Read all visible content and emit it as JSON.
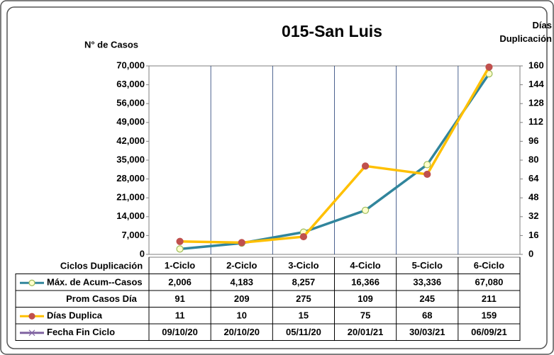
{
  "chart_data": {
    "type": "line",
    "title": "015-San Luis",
    "y_label": "N° de Casos",
    "y2_label": "Días Duplicación",
    "table_label": "Ciclos Duplicación",
    "categories": [
      "1-Ciclo",
      "2-Ciclo",
      "3-Ciclo",
      "4-Ciclo",
      "5-Ciclo",
      "6-Ciclo"
    ],
    "ylim": [
      0,
      70000
    ],
    "yticks": [
      0,
      {
        "value": 7000,
        "label": "7,000"
      },
      {
        "value": 14000,
        "label": "14,000"
      },
      {
        "value": 21000,
        "label": "21,000"
      },
      {
        "value": 28000,
        "label": "28,000"
      },
      {
        "value": 35000,
        "label": "35,000"
      },
      {
        "value": 42000,
        "label": "42,000"
      },
      {
        "value": 49000,
        "label": "49,000"
      },
      {
        "value": 56000,
        "label": "56,000"
      },
      {
        "value": 63000,
        "label": "63,000"
      },
      {
        "value": 70000,
        "label": "70,000"
      }
    ],
    "y2lim": [
      0,
      160
    ],
    "y2ticks": [
      0,
      16,
      32,
      48,
      64,
      80,
      96,
      112,
      128,
      144,
      160
    ],
    "series": [
      {
        "name": "Máx. de Acum--Casos",
        "color": "#31859c",
        "marker_color": "#9bbb59",
        "marker_fill": "#ffffcc",
        "plotted": true,
        "values": [
          2006,
          4183,
          8257,
          16366,
          33336,
          67080
        ],
        "value_labels": [
          "2,006",
          "4,183",
          "8,257",
          "16,366",
          "33,336",
          "67,080"
        ]
      },
      {
        "name": "Prom Casos Día",
        "plotted": false,
        "values": [
          91,
          209,
          275,
          109,
          245,
          211
        ]
      },
      {
        "name": "Días Duplica",
        "color": "#ffc000",
        "marker_color": "#c0504d",
        "marker_fill": "#c0504d",
        "axis": "y2",
        "plotted": true,
        "values": [
          11,
          10,
          15,
          75,
          68,
          159
        ]
      },
      {
        "name": "Fecha Fin Ciclo",
        "color": "#8064a2",
        "plotted": false,
        "values": [
          "09/10/20",
          "20/10/20",
          "05/11/20",
          "20/01/21",
          "30/03/21",
          "06/09/21"
        ]
      }
    ]
  }
}
